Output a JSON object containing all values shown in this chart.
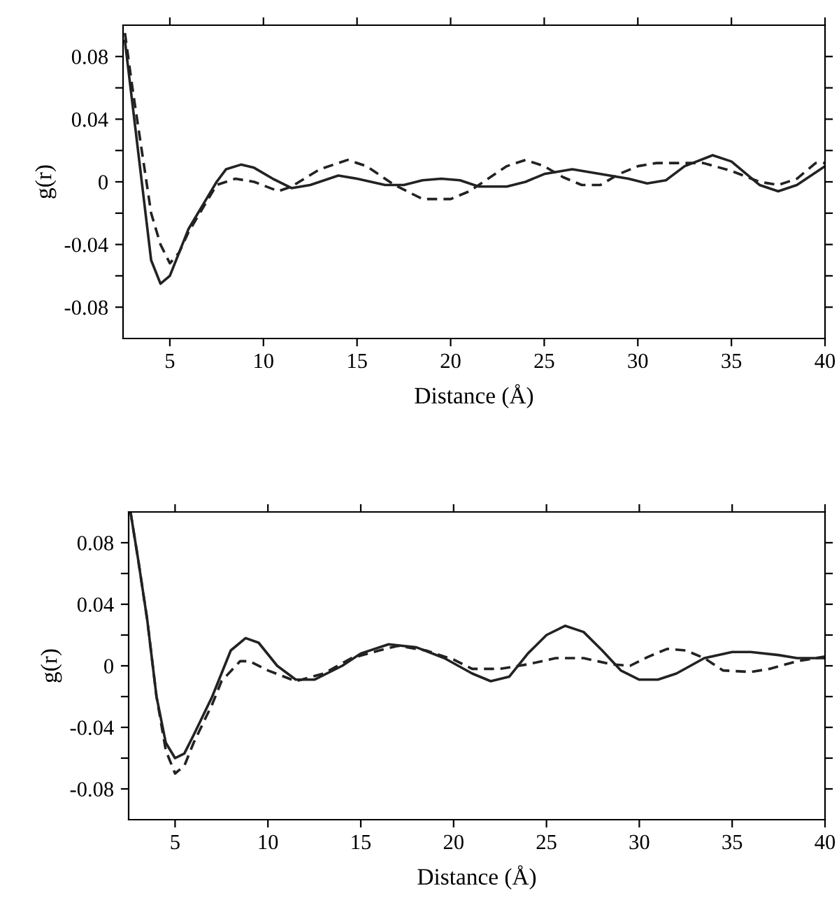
{
  "chart_data": [
    {
      "type": "line",
      "xlabel": "Distance (Å)",
      "ylabel": "g(r)",
      "xlim": [
        2.5,
        40
      ],
      "ylim": [
        -0.1,
        0.1
      ],
      "xticks": [
        5,
        10,
        15,
        20,
        25,
        30,
        35,
        40
      ],
      "yticks": [
        -0.08,
        {
          "value": -0.06,
          "label": null
        },
        -0.04,
        {
          "value": -0.02,
          "label": null
        },
        0,
        {
          "value": 0.02,
          "label": null
        },
        0.04,
        {
          "value": 0.06,
          "label": null
        },
        0.08
      ],
      "grid": false,
      "series": [
        {
          "color": "#222222",
          "line_style": "solid",
          "x": [
            2.6,
            3,
            3.5,
            4,
            4.5,
            5,
            5.5,
            6,
            7,
            7.5,
            8,
            8.8,
            9.5,
            10.5,
            11.5,
            12.5,
            14,
            15,
            16.5,
            17.5,
            18.5,
            19.5,
            20.5,
            21.5,
            23,
            24,
            25,
            26.5,
            28,
            29.5,
            30.5,
            31.5,
            32.5,
            34,
            35,
            36.5,
            37.5,
            38.5,
            40
          ],
          "values": [
            0.09,
            0.05,
            0.0,
            -0.05,
            -0.065,
            -0.06,
            -0.045,
            -0.03,
            -0.01,
            0.0,
            0.008,
            0.011,
            0.009,
            0.002,
            -0.004,
            -0.002,
            0.004,
            0.002,
            -0.002,
            -0.002,
            0.001,
            0.002,
            0.001,
            -0.003,
            -0.003,
            0.0,
            0.005,
            0.008,
            0.005,
            0.002,
            -0.001,
            0.001,
            0.01,
            0.017,
            0.013,
            -0.002,
            -0.006,
            -0.002,
            0.01
          ]
        },
        {
          "color": "#222222",
          "line_style": "dashed",
          "x": [
            2.6,
            3,
            3.5,
            4,
            4.5,
            5,
            5.5,
            6,
            7,
            7.5,
            8.5,
            9.5,
            10.8,
            11.5,
            13,
            14.5,
            15.5,
            17,
            18.5,
            20,
            21,
            22,
            23,
            24,
            25,
            26,
            27,
            28,
            29,
            30,
            31,
            32,
            33.5,
            35,
            36.5,
            37.5,
            38.5,
            39.5,
            40
          ],
          "values": [
            0.095,
            0.06,
            0.02,
            -0.02,
            -0.04,
            -0.052,
            -0.045,
            -0.032,
            -0.012,
            -0.002,
            0.002,
            0.0,
            -0.006,
            -0.003,
            0.008,
            0.014,
            0.01,
            -0.002,
            -0.011,
            -0.011,
            -0.006,
            0.002,
            0.01,
            0.014,
            0.01,
            0.003,
            -0.002,
            -0.002,
            0.005,
            0.01,
            0.012,
            0.012,
            0.012,
            0.007,
            0.0,
            -0.002,
            0.002,
            0.012,
            0.012
          ]
        }
      ]
    },
    {
      "type": "line",
      "xlabel": "Distance (Å)",
      "ylabel": "g(r)",
      "xlim": [
        2.5,
        40
      ],
      "ylim": [
        -0.1,
        0.1
      ],
      "xticks": [
        5,
        10,
        15,
        20,
        25,
        30,
        35,
        40
      ],
      "yticks": [
        -0.08,
        {
          "value": -0.06,
          "label": null
        },
        -0.04,
        {
          "value": -0.02,
          "label": null
        },
        0,
        {
          "value": 0.02,
          "label": null
        },
        0.04,
        {
          "value": 0.06,
          "label": null
        },
        0.08
      ],
      "grid": false,
      "series": [
        {
          "color": "#222222",
          "line_style": "solid",
          "x": [
            2.6,
            3,
            3.5,
            4,
            4.5,
            5,
            5.5,
            6,
            7,
            7.5,
            8,
            8.8,
            9.5,
            10.5,
            11.5,
            12.5,
            14,
            15,
            16.5,
            18,
            19.5,
            21,
            22,
            23,
            24,
            25,
            26,
            27,
            28,
            29,
            30,
            31,
            32,
            33.5,
            35,
            36,
            37.5,
            38.5,
            40
          ],
          "values": [
            0.1,
            0.07,
            0.03,
            -0.02,
            -0.05,
            -0.06,
            -0.057,
            -0.045,
            -0.02,
            -0.005,
            0.01,
            0.018,
            0.015,
            0.0,
            -0.009,
            -0.009,
            0.0,
            0.008,
            0.014,
            0.012,
            0.005,
            -0.005,
            -0.01,
            -0.007,
            0.008,
            0.02,
            0.026,
            0.022,
            0.01,
            -0.003,
            -0.009,
            -0.009,
            -0.005,
            0.005,
            0.009,
            0.009,
            0.007,
            0.005,
            0.005
          ]
        },
        {
          "color": "#222222",
          "line_style": "dashed",
          "x": [
            2.6,
            3,
            3.5,
            4,
            4.5,
            5,
            5.5,
            6,
            7,
            7.5,
            8.5,
            9,
            10,
            11.5,
            13,
            14.5,
            16,
            17,
            18.5,
            20,
            21,
            22.5,
            24,
            25.5,
            27,
            28.5,
            29.5,
            30.5,
            31.5,
            32.5,
            33.5,
            34.5,
            36,
            37,
            38.5,
            39.5,
            40
          ],
          "values": [
            0.1,
            0.07,
            0.03,
            -0.02,
            -0.055,
            -0.07,
            -0.065,
            -0.05,
            -0.025,
            -0.01,
            0.003,
            0.003,
            -0.003,
            -0.01,
            -0.005,
            0.005,
            0.01,
            0.013,
            0.01,
            0.004,
            -0.002,
            -0.002,
            0.001,
            0.005,
            0.005,
            0.001,
            0.0,
            0.006,
            0.011,
            0.01,
            0.005,
            -0.003,
            -0.004,
            -0.002,
            0.003,
            0.005,
            0.006
          ]
        }
      ]
    }
  ]
}
